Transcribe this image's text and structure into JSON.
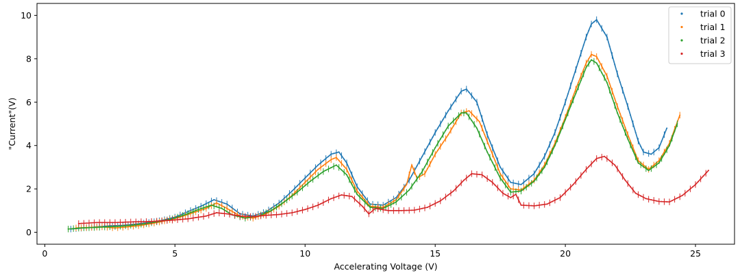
{
  "chart_data": {
    "type": "scatter",
    "title": "",
    "xlabel": "Accelerating Voltage (V)",
    "ylabel": "\"Current\"(V)",
    "xlim": [
      -0.3,
      26.5
    ],
    "ylim": [
      -0.55,
      10.55
    ],
    "xticks": [
      "0",
      "5",
      "10",
      "15",
      "20",
      "25"
    ],
    "yticks": [
      "0",
      "2",
      "4",
      "6",
      "8",
      "10"
    ],
    "grid": false,
    "legend_position": "top-right",
    "error_bar_y": 0.15,
    "series": [
      {
        "name": "trial 0",
        "color": "#1f77b4",
        "x": [
          1.0,
          1.5,
          2.0,
          2.5,
          3.0,
          3.5,
          4.0,
          4.5,
          5.0,
          5.5,
          6.0,
          6.5,
          7.0,
          7.5,
          8.0,
          8.5,
          9.0,
          9.5,
          10.0,
          10.5,
          11.0,
          11.3,
          11.6,
          12.0,
          12.5,
          13.0,
          13.5,
          14.0,
          14.5,
          15.0,
          15.5,
          16.0,
          16.2,
          16.6,
          17.0,
          17.5,
          17.9,
          18.3,
          18.8,
          19.2,
          19.6,
          20.0,
          20.4,
          20.8,
          21.0,
          21.2,
          21.6,
          22.0,
          22.4,
          22.8,
          23.0,
          23.3,
          23.6,
          23.9
        ],
        "y": [
          0.15,
          0.2,
          0.25,
          0.3,
          0.32,
          0.38,
          0.45,
          0.55,
          0.7,
          0.95,
          1.2,
          1.5,
          1.3,
          0.85,
          0.75,
          0.95,
          1.35,
          1.9,
          2.5,
          3.1,
          3.6,
          3.7,
          3.2,
          2.1,
          1.3,
          1.25,
          1.6,
          2.4,
          3.5,
          4.6,
          5.6,
          6.5,
          6.6,
          6.0,
          4.5,
          3.0,
          2.3,
          2.2,
          2.7,
          3.5,
          4.6,
          6.0,
          7.5,
          9.0,
          9.6,
          9.8,
          9.0,
          7.3,
          5.8,
          4.2,
          3.7,
          3.6,
          3.9,
          4.8
        ]
      },
      {
        "name": "trial 1",
        "color": "#ff7f0e",
        "x": [
          1.2,
          1.7,
          2.2,
          2.7,
          3.2,
          3.7,
          4.2,
          4.7,
          5.2,
          5.7,
          6.2,
          6.6,
          7.0,
          7.5,
          8.0,
          8.5,
          9.0,
          9.5,
          10.0,
          10.5,
          11.0,
          11.2,
          11.6,
          12.0,
          12.5,
          13.0,
          13.5,
          13.9,
          14.1,
          14.3,
          14.6,
          15.0,
          15.5,
          16.0,
          16.3,
          16.7,
          17.1,
          17.5,
          17.9,
          18.3,
          18.8,
          19.2,
          19.6,
          20.0,
          20.4,
          20.8,
          21.0,
          21.2,
          21.6,
          22.0,
          22.4,
          22.8,
          23.2,
          23.6,
          24.0,
          24.4
        ],
        "y": [
          0.2,
          0.22,
          0.25,
          0.2,
          0.25,
          0.32,
          0.42,
          0.55,
          0.7,
          0.9,
          1.1,
          1.35,
          1.1,
          0.75,
          0.65,
          0.85,
          1.2,
          1.7,
          2.3,
          2.9,
          3.35,
          3.45,
          2.9,
          1.9,
          1.2,
          1.15,
          1.5,
          2.2,
          3.1,
          2.5,
          2.7,
          3.6,
          4.5,
          5.5,
          5.6,
          5.1,
          3.9,
          2.7,
          2.0,
          1.95,
          2.4,
          3.1,
          4.1,
          5.3,
          6.6,
          7.8,
          8.2,
          8.1,
          7.2,
          5.8,
          4.5,
          3.3,
          2.9,
          3.3,
          4.1,
          5.4
        ]
      },
      {
        "name": "trial 2",
        "color": "#2ca02c",
        "x": [
          0.9,
          1.4,
          1.9,
          2.4,
          2.9,
          3.4,
          3.9,
          4.4,
          4.9,
          5.4,
          5.9,
          6.4,
          6.8,
          7.2,
          7.7,
          8.2,
          8.7,
          9.2,
          9.7,
          10.2,
          10.7,
          11.2,
          11.6,
          12.0,
          12.5,
          13.0,
          13.5,
          14.0,
          14.5,
          15.0,
          15.5,
          16.0,
          16.2,
          16.6,
          17.0,
          17.5,
          17.9,
          18.3,
          18.8,
          19.2,
          19.6,
          20.0,
          20.4,
          20.8,
          21.0,
          21.2,
          21.6,
          22.0,
          22.4,
          22.8,
          23.2,
          23.6,
          24.0,
          24.3
        ],
        "y": [
          0.15,
          0.2,
          0.22,
          0.25,
          0.28,
          0.33,
          0.4,
          0.5,
          0.62,
          0.82,
          1.05,
          1.25,
          1.1,
          0.8,
          0.65,
          0.75,
          1.0,
          1.4,
          1.85,
          2.35,
          2.8,
          3.1,
          2.65,
          1.75,
          1.15,
          1.1,
          1.4,
          1.95,
          2.8,
          3.9,
          4.9,
          5.5,
          5.5,
          4.8,
          3.7,
          2.5,
          1.85,
          1.9,
          2.35,
          3.0,
          4.0,
          5.2,
          6.4,
          7.6,
          7.95,
          7.8,
          6.9,
          5.5,
          4.3,
          3.2,
          2.85,
          3.2,
          4.0,
          5.0
        ]
      },
      {
        "name": "trial 3",
        "color": "#d62728",
        "x": [
          1.3,
          2.0,
          2.7,
          3.4,
          4.1,
          4.8,
          5.5,
          6.2,
          6.6,
          7.0,
          7.5,
          8.0,
          8.5,
          9.0,
          9.5,
          10.0,
          10.5,
          11.0,
          11.4,
          11.8,
          12.2,
          12.45,
          12.7,
          13.2,
          13.7,
          14.2,
          14.7,
          15.2,
          15.7,
          16.1,
          16.4,
          16.8,
          17.2,
          17.6,
          17.9,
          18.1,
          18.3,
          18.8,
          19.3,
          19.8,
          20.3,
          20.8,
          21.2,
          21.5,
          21.9,
          22.3,
          22.7,
          23.1,
          23.6,
          24.0,
          24.5,
          25.0,
          25.5
        ],
        "y": [
          0.4,
          0.45,
          0.45,
          0.48,
          0.5,
          0.55,
          0.62,
          0.75,
          0.9,
          0.85,
          0.75,
          0.72,
          0.78,
          0.82,
          0.9,
          1.05,
          1.25,
          1.55,
          1.72,
          1.65,
          1.2,
          0.85,
          1.1,
          1.0,
          1.0,
          1.02,
          1.15,
          1.45,
          1.9,
          2.4,
          2.7,
          2.65,
          2.3,
          1.8,
          1.6,
          1.75,
          1.25,
          1.22,
          1.3,
          1.6,
          2.2,
          2.9,
          3.4,
          3.5,
          3.1,
          2.4,
          1.8,
          1.55,
          1.42,
          1.4,
          1.7,
          2.2,
          2.85
        ]
      }
    ]
  }
}
